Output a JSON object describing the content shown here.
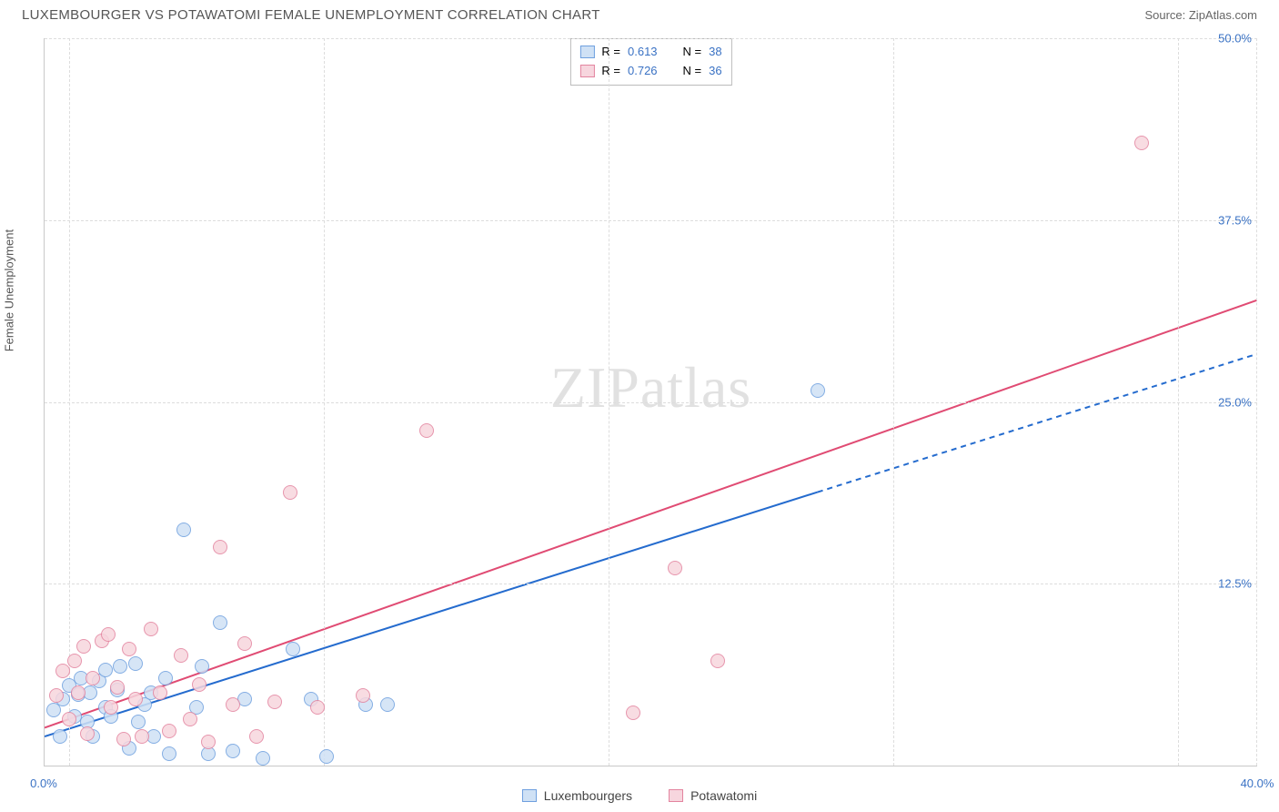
{
  "header": {
    "title": "LUXEMBOURGER VS POTAWATOMI FEMALE UNEMPLOYMENT CORRELATION CHART",
    "source": "Source: ZipAtlas.com"
  },
  "ylabel": "Female Unemployment",
  "watermark": {
    "left": "ZIP",
    "right": "atlas"
  },
  "chart": {
    "type": "scatter",
    "xlim": [
      0,
      40
    ],
    "ylim": [
      0,
      50
    ],
    "xtick_values": [
      0,
      40
    ],
    "xtick_labels": [
      "0.0%",
      "40.0%"
    ],
    "ytick_values": [
      12.5,
      25.0,
      37.5,
      50.0
    ],
    "ytick_labels": [
      "12.5%",
      "25.0%",
      "37.5%",
      "50.0%"
    ],
    "xgrid_values": [
      0.8,
      9.2,
      18.6,
      28.0,
      37.4
    ],
    "background_color": "#ffffff",
    "grid_color": "#dddddd",
    "axis_color": "#c9c9c9",
    "tick_color": "#3a72c4",
    "marker_radius": 8,
    "marker_opacity": 0.85,
    "series": [
      {
        "name": "Luxembourgers",
        "fill": "#cfe1f5",
        "stroke": "#6fa0df",
        "trend": {
          "color": "#246bce",
          "width": 2,
          "x0": 0,
          "y0": 2.0,
          "x1": 25.5,
          "y1": 18.8,
          "dash_x1": 40,
          "dash_y1": 28.3,
          "dash": "6 5"
        },
        "R": 0.613,
        "N": 38,
        "points": [
          [
            0.3,
            3.8
          ],
          [
            0.5,
            2.0
          ],
          [
            0.6,
            4.6
          ],
          [
            0.8,
            5.5
          ],
          [
            1.0,
            3.4
          ],
          [
            1.1,
            4.9
          ],
          [
            1.2,
            6.0
          ],
          [
            1.4,
            3.0
          ],
          [
            1.5,
            5.0
          ],
          [
            1.6,
            2.0
          ],
          [
            1.8,
            5.8
          ],
          [
            2.0,
            6.6
          ],
          [
            2.0,
            4.0
          ],
          [
            2.2,
            3.4
          ],
          [
            2.4,
            5.2
          ],
          [
            2.5,
            6.8
          ],
          [
            2.8,
            1.2
          ],
          [
            3.0,
            7.0
          ],
          [
            3.1,
            3.0
          ],
          [
            3.3,
            4.2
          ],
          [
            3.5,
            5.0
          ],
          [
            3.6,
            2.0
          ],
          [
            4.0,
            6.0
          ],
          [
            4.1,
            0.8
          ],
          [
            4.6,
            16.2
          ],
          [
            5.0,
            4.0
          ],
          [
            5.2,
            6.8
          ],
          [
            5.4,
            0.8
          ],
          [
            5.8,
            9.8
          ],
          [
            6.2,
            1.0
          ],
          [
            6.6,
            4.6
          ],
          [
            7.2,
            0.5
          ],
          [
            8.2,
            8.0
          ],
          [
            8.8,
            4.6
          ],
          [
            9.3,
            0.6
          ],
          [
            10.6,
            4.2
          ],
          [
            11.3,
            4.2
          ],
          [
            25.5,
            25.8
          ]
        ]
      },
      {
        "name": "Potawatomi",
        "fill": "#f7d6de",
        "stroke": "#e3849f",
        "trend": {
          "color": "#e04b73",
          "width": 2,
          "x0": 0,
          "y0": 2.6,
          "x1": 40,
          "y1": 32.0
        },
        "R": 0.726,
        "N": 36,
        "points": [
          [
            0.4,
            4.8
          ],
          [
            0.6,
            6.5
          ],
          [
            0.8,
            3.2
          ],
          [
            1.0,
            7.2
          ],
          [
            1.1,
            5.0
          ],
          [
            1.3,
            8.2
          ],
          [
            1.4,
            2.2
          ],
          [
            1.6,
            6.0
          ],
          [
            1.9,
            8.6
          ],
          [
            2.1,
            9.0
          ],
          [
            2.2,
            4.0
          ],
          [
            2.4,
            5.4
          ],
          [
            2.6,
            1.8
          ],
          [
            2.8,
            8.0
          ],
          [
            3.0,
            4.6
          ],
          [
            3.2,
            2.0
          ],
          [
            3.5,
            9.4
          ],
          [
            3.8,
            5.0
          ],
          [
            4.1,
            2.4
          ],
          [
            4.5,
            7.6
          ],
          [
            4.8,
            3.2
          ],
          [
            5.1,
            5.6
          ],
          [
            5.4,
            1.6
          ],
          [
            5.8,
            15.0
          ],
          [
            6.2,
            4.2
          ],
          [
            6.6,
            8.4
          ],
          [
            7.0,
            2.0
          ],
          [
            7.6,
            4.4
          ],
          [
            8.1,
            18.8
          ],
          [
            9.0,
            4.0
          ],
          [
            10.5,
            4.8
          ],
          [
            12.6,
            23.0
          ],
          [
            19.4,
            3.6
          ],
          [
            20.8,
            13.6
          ],
          [
            22.2,
            7.2
          ],
          [
            36.2,
            42.8
          ]
        ]
      }
    ]
  },
  "stats_box": {
    "r_label": "R =",
    "n_label": "N =",
    "text_color": "#1a1a1a",
    "value_color": "#3a72c4"
  },
  "legend": {
    "label_a": "Luxembourgers",
    "label_b": "Potawatomi"
  }
}
